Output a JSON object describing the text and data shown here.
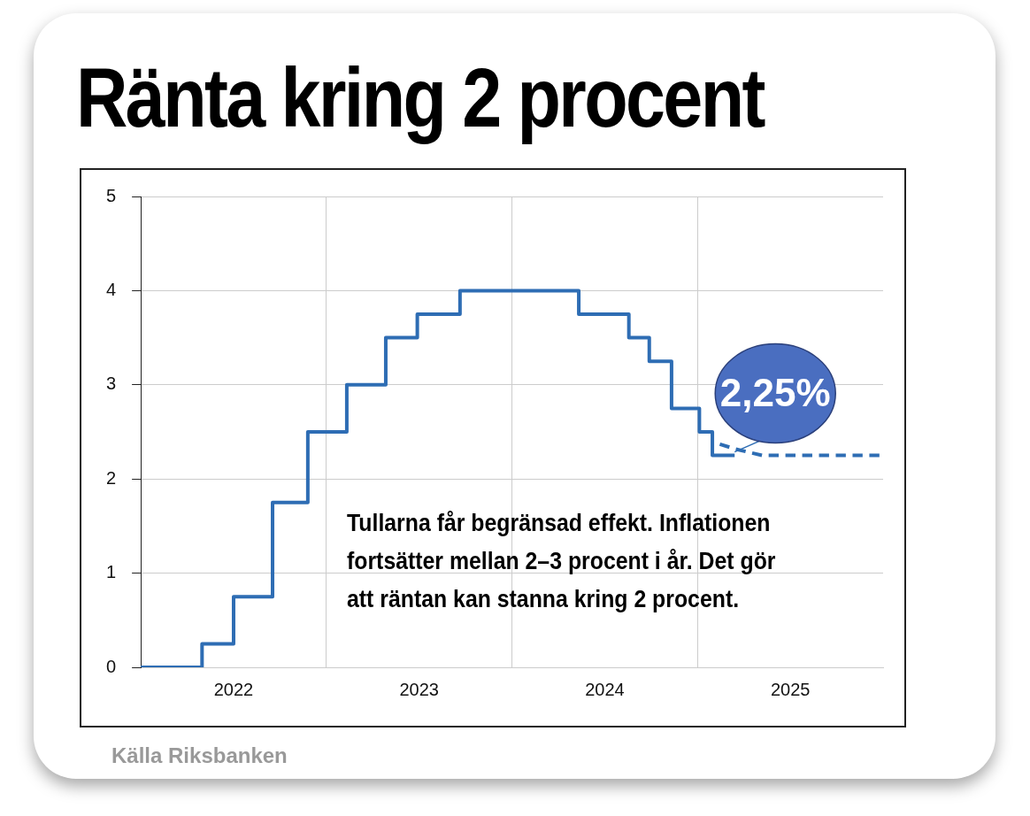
{
  "chart_data": {
    "type": "step",
    "title": "Ränta kring 2 procent",
    "xlim": [
      2022,
      2026
    ],
    "xticks": [
      {
        "value": 2022.5,
        "label": "2022"
      },
      {
        "value": 2023,
        "label": null
      },
      {
        "value": 2023.5,
        "label": "2023"
      },
      {
        "value": 2024,
        "label": null
      },
      {
        "value": 2024.5,
        "label": "2024"
      },
      {
        "value": 2025,
        "label": null
      },
      {
        "value": 2025.5,
        "label": "2025"
      }
    ],
    "ylim": [
      0,
      5
    ],
    "yticks": [
      0,
      1,
      2,
      3,
      4,
      5
    ],
    "grid": true,
    "legend": false,
    "series": [
      {
        "color": "#2e6db4",
        "line_style": "solid",
        "x": [
          2022.0,
          2022.33,
          2022.5,
          2022.71,
          2022.9,
          2023.11,
          2023.32,
          2023.49,
          2023.72,
          2024.36,
          2024.63,
          2024.74,
          2024.86,
          2025.01,
          2025.08,
          2025.2
        ],
        "values": [
          0,
          0.25,
          0.75,
          1.75,
          2.5,
          3,
          3.5,
          3.75,
          4,
          3.75,
          3.5,
          3.25,
          2.75,
          2.5,
          2.25,
          2.25
        ]
      },
      {
        "type": "line",
        "color": "#2e6db4",
        "line_style": "dashed",
        "x": [
          2025.12,
          2025.2,
          2025.35,
          2025.98
        ],
        "values": [
          2.37,
          2.32,
          2.25,
          2.25
        ]
      }
    ],
    "annotations": [
      {
        "text": "2,25%",
        "x": 2025.2,
        "y": 2.25
      },
      "Tullarna får begränsad effekt. Inflationen fortsätter mellan 2–3 procent i år. Det gör att räntan kan stanna kring 2 procent.",
      "Källa Riksbanken"
    ]
  }
}
